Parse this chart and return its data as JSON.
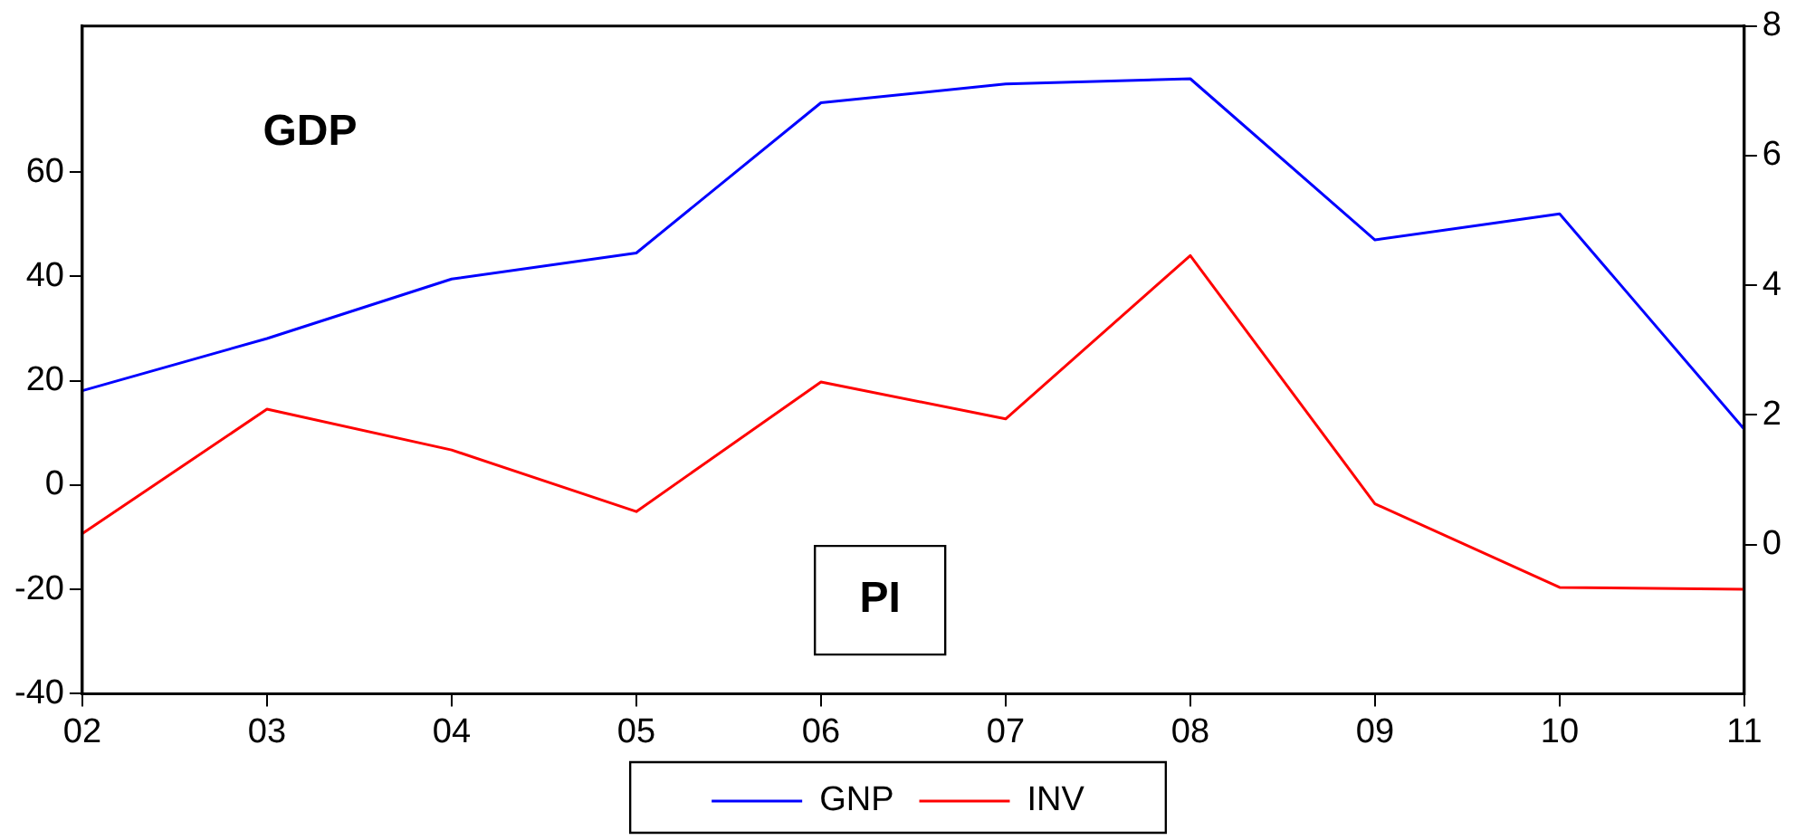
{
  "chart_data": {
    "type": "line",
    "categories": [
      "02",
      "03",
      "04",
      "05",
      "06",
      "07",
      "08",
      "09",
      "10",
      "11"
    ],
    "series": [
      {
        "name": "GNP",
        "color": "#0000ff",
        "values": [
          18.1,
          28.1,
          39.5,
          44.5,
          73.3,
          76.9,
          77.9,
          47,
          52,
          10.7
        ]
      },
      {
        "name": "INV",
        "color": "#ff0000",
        "axis": "y2",
        "values": [
          0.17,
          2.09,
          1.46,
          0.51,
          2.51,
          1.94,
          4.46,
          0.63,
          -0.66,
          -0.69
        ]
      }
    ],
    "ylim": [
      -40,
      88
    ],
    "yticks": [
      -40,
      -20,
      0,
      20,
      40,
      60
    ],
    "y2lim": [
      -2.3,
      8
    ],
    "y2ticks": [
      0,
      2,
      4,
      6,
      8
    ],
    "annotations": [
      "GDP",
      "PI"
    ],
    "grid": false,
    "legend": "bottom",
    "marker": "none",
    "line_style": "solid"
  }
}
